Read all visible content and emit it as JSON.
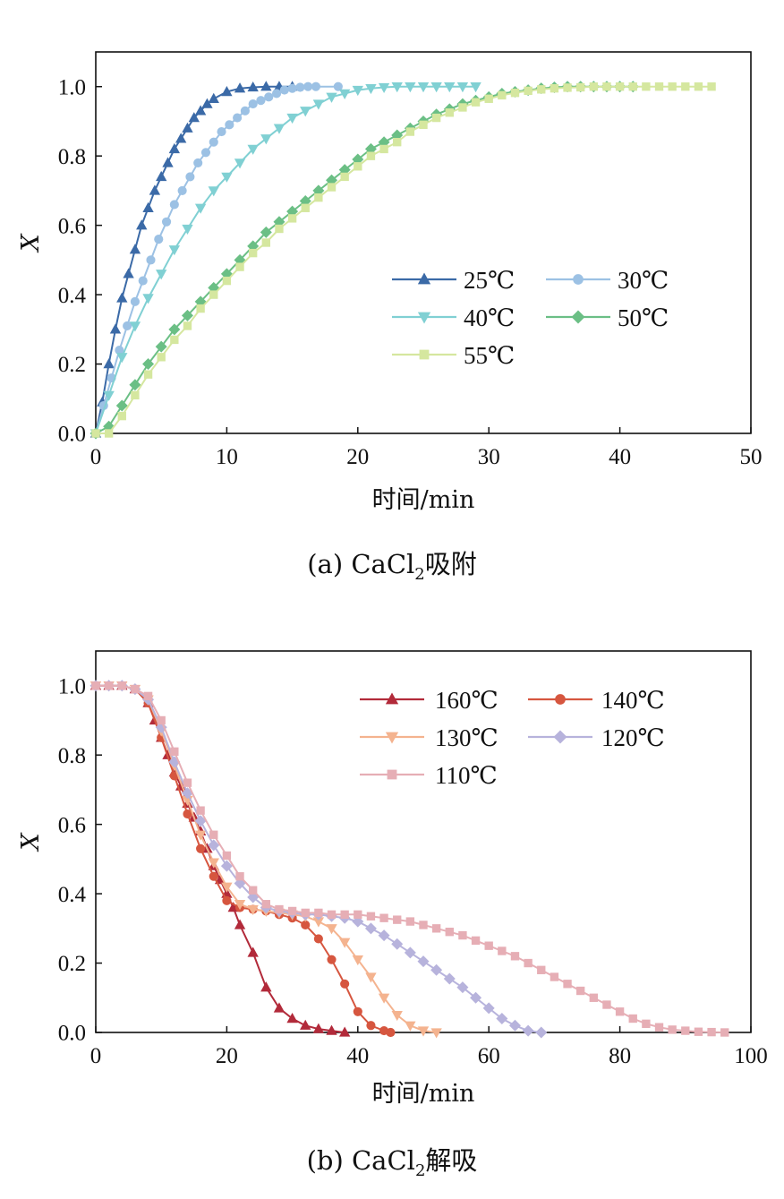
{
  "chart_data": [
    {
      "type": "line",
      "caption": {
        "prefix": "(a) CaCl",
        "sub": "2",
        "suffix": "吸附"
      },
      "xlabel": "时间/min",
      "ylabel": "X",
      "xlim": [
        0,
        50
      ],
      "ylim": [
        0,
        1.1
      ],
      "xticks": [
        0,
        10,
        20,
        30,
        40,
        50
      ],
      "yticks": [
        0.0,
        0.2,
        0.4,
        0.6,
        0.8,
        1.0
      ],
      "xtick_labels": [
        "0",
        "10",
        "20",
        "30",
        "40",
        "50"
      ],
      "ytick_labels": [
        "0.0",
        "0.2",
        "0.4",
        "0.6",
        "0.8",
        "1.0"
      ],
      "legend_position": "center-right",
      "series": [
        {
          "name": "25℃",
          "marker": "triangle-up",
          "color": "#3b6aa7",
          "x": [
            0,
            0.5,
            1,
            1.5,
            2,
            2.5,
            3,
            3.5,
            4,
            4.5,
            5,
            5.5,
            6,
            6.5,
            7,
            7.5,
            8,
            8.5,
            9,
            10,
            11,
            12,
            13,
            14,
            15
          ],
          "y": [
            0.0,
            0.09,
            0.2,
            0.3,
            0.39,
            0.46,
            0.53,
            0.6,
            0.65,
            0.7,
            0.74,
            0.78,
            0.82,
            0.85,
            0.88,
            0.91,
            0.93,
            0.95,
            0.965,
            0.985,
            0.995,
            0.998,
            1.0,
            1.0,
            1.0
          ]
        },
        {
          "name": "30℃",
          "marker": "circle",
          "color": "#9cc1e4",
          "x": [
            0,
            0.6,
            1.2,
            1.8,
            2.4,
            3,
            3.6,
            4.2,
            4.8,
            5.4,
            6,
            6.6,
            7.2,
            7.8,
            8.4,
            9,
            9.6,
            10.2,
            10.8,
            11.4,
            12,
            12.6,
            13.2,
            13.8,
            14.4,
            15,
            15.6,
            16.2,
            16.8,
            18.5
          ],
          "y": [
            0.0,
            0.08,
            0.16,
            0.24,
            0.31,
            0.38,
            0.44,
            0.5,
            0.56,
            0.61,
            0.66,
            0.7,
            0.74,
            0.78,
            0.81,
            0.84,
            0.87,
            0.89,
            0.91,
            0.93,
            0.95,
            0.96,
            0.97,
            0.98,
            0.99,
            0.995,
            0.998,
            1.0,
            1.0,
            1.0
          ]
        },
        {
          "name": "40℃",
          "marker": "triangle-down",
          "color": "#80d0d3",
          "x": [
            0,
            1,
            2,
            3,
            4,
            5,
            6,
            7,
            8,
            9,
            10,
            11,
            12,
            13,
            14,
            15,
            16,
            17,
            18,
            19,
            20,
            21,
            22,
            23,
            24,
            25,
            26,
            27,
            28,
            29
          ],
          "y": [
            0.0,
            0.11,
            0.22,
            0.31,
            0.39,
            0.46,
            0.53,
            0.59,
            0.65,
            0.7,
            0.74,
            0.78,
            0.82,
            0.85,
            0.88,
            0.91,
            0.93,
            0.95,
            0.97,
            0.98,
            0.99,
            0.995,
            0.998,
            1.0,
            1.0,
            1.0,
            1.0,
            1.0,
            1.0,
            1.0
          ]
        },
        {
          "name": "50℃",
          "marker": "diamond",
          "color": "#6bbf85",
          "x": [
            0,
            1,
            2,
            3,
            4,
            5,
            6,
            7,
            8,
            9,
            10,
            11,
            12,
            13,
            14,
            15,
            16,
            17,
            18,
            19,
            20,
            21,
            22,
            23,
            24,
            25,
            26,
            27,
            28,
            29,
            30,
            31,
            32,
            33,
            34,
            35,
            36,
            37,
            38,
            39,
            40,
            41
          ],
          "y": [
            0.0,
            0.02,
            0.08,
            0.14,
            0.2,
            0.25,
            0.3,
            0.34,
            0.38,
            0.42,
            0.46,
            0.5,
            0.54,
            0.58,
            0.61,
            0.64,
            0.67,
            0.7,
            0.73,
            0.76,
            0.79,
            0.82,
            0.84,
            0.86,
            0.88,
            0.9,
            0.92,
            0.935,
            0.95,
            0.96,
            0.97,
            0.98,
            0.985,
            0.99,
            0.995,
            0.998,
            1.0,
            1.0,
            1.0,
            1.0,
            1.0,
            1.0
          ]
        },
        {
          "name": "55℃",
          "marker": "square",
          "color": "#d5e79f",
          "x": [
            0,
            1,
            2,
            3,
            4,
            5,
            6,
            7,
            8,
            9,
            10,
            11,
            12,
            13,
            14,
            15,
            16,
            17,
            18,
            19,
            20,
            21,
            22,
            23,
            24,
            25,
            26,
            27,
            28,
            29,
            30,
            31,
            32,
            33,
            34,
            35,
            36,
            37,
            38,
            39,
            40,
            41,
            42,
            43,
            44,
            45,
            46,
            47
          ],
          "y": [
            0.0,
            0.0,
            0.05,
            0.11,
            0.17,
            0.22,
            0.27,
            0.31,
            0.36,
            0.4,
            0.44,
            0.48,
            0.52,
            0.55,
            0.59,
            0.62,
            0.65,
            0.68,
            0.71,
            0.74,
            0.77,
            0.8,
            0.82,
            0.84,
            0.87,
            0.89,
            0.91,
            0.925,
            0.94,
            0.955,
            0.965,
            0.975,
            0.982,
            0.988,
            0.992,
            0.995,
            0.997,
            0.998,
            1.0,
            1.0,
            1.0,
            1.0,
            1.0,
            1.0,
            1.0,
            1.0,
            1.0,
            1.0
          ]
        }
      ]
    },
    {
      "type": "line",
      "caption": {
        "prefix": "(b) CaCl",
        "sub": "2",
        "suffix": "解吸"
      },
      "xlabel": "时间/min",
      "ylabel": "X",
      "xlim": [
        0,
        100
      ],
      "ylim": [
        0,
        1.1
      ],
      "xticks": [
        0,
        20,
        40,
        60,
        80,
        100
      ],
      "yticks": [
        0.0,
        0.2,
        0.4,
        0.6,
        0.8,
        1.0
      ],
      "xtick_labels": [
        "0",
        "20",
        "40",
        "60",
        "80",
        "100"
      ],
      "ytick_labels": [
        "0.0",
        "0.2",
        "0.4",
        "0.6",
        "0.8",
        "1.0"
      ],
      "legend_position": "top-right",
      "series": [
        {
          "name": "160℃",
          "marker": "triangle-up",
          "color": "#b22a3a",
          "x": [
            0,
            2,
            4,
            6,
            8,
            9,
            10,
            11,
            12,
            13,
            14,
            15,
            16,
            17,
            18,
            19,
            20,
            21,
            22,
            24,
            26,
            28,
            30,
            32,
            34,
            36,
            38
          ],
          "y": [
            1.0,
            1.0,
            1.0,
            0.99,
            0.95,
            0.9,
            0.85,
            0.8,
            0.75,
            0.71,
            0.66,
            0.62,
            0.58,
            0.53,
            0.48,
            0.44,
            0.4,
            0.36,
            0.31,
            0.23,
            0.13,
            0.07,
            0.04,
            0.02,
            0.01,
            0.005,
            0.0
          ]
        },
        {
          "name": "140℃",
          "marker": "circle",
          "color": "#d6563f",
          "x": [
            0,
            2,
            4,
            6,
            8,
            10,
            12,
            14,
            16,
            18,
            20,
            22,
            24,
            26,
            28,
            30,
            32,
            34,
            36,
            38,
            40,
            42,
            44,
            45
          ],
          "y": [
            1.0,
            1.0,
            1.0,
            0.99,
            0.95,
            0.85,
            0.74,
            0.63,
            0.53,
            0.45,
            0.38,
            0.36,
            0.355,
            0.35,
            0.34,
            0.33,
            0.31,
            0.27,
            0.21,
            0.14,
            0.06,
            0.02,
            0.005,
            0.0
          ]
        },
        {
          "name": "130℃",
          "marker": "triangle-down",
          "color": "#f4b38f",
          "x": [
            0,
            2,
            4,
            6,
            8,
            10,
            12,
            14,
            16,
            18,
            20,
            22,
            24,
            26,
            28,
            30,
            32,
            34,
            36,
            38,
            40,
            42,
            44,
            46,
            48,
            50,
            52
          ],
          "y": [
            1.0,
            1.0,
            1.0,
            0.99,
            0.96,
            0.87,
            0.77,
            0.67,
            0.57,
            0.49,
            0.42,
            0.37,
            0.355,
            0.35,
            0.345,
            0.34,
            0.335,
            0.32,
            0.3,
            0.26,
            0.21,
            0.16,
            0.1,
            0.05,
            0.02,
            0.005,
            0.0
          ]
        },
        {
          "name": "120℃",
          "marker": "diamond",
          "color": "#b7b3dc",
          "x": [
            0,
            2,
            4,
            6,
            8,
            10,
            12,
            14,
            16,
            18,
            20,
            22,
            24,
            26,
            28,
            30,
            32,
            34,
            36,
            38,
            40,
            42,
            44,
            46,
            48,
            50,
            52,
            54,
            56,
            58,
            60,
            62,
            64,
            66,
            68
          ],
          "y": [
            1.0,
            1.0,
            1.0,
            0.99,
            0.96,
            0.88,
            0.78,
            0.69,
            0.61,
            0.54,
            0.48,
            0.43,
            0.39,
            0.36,
            0.35,
            0.345,
            0.34,
            0.34,
            0.335,
            0.33,
            0.32,
            0.3,
            0.28,
            0.255,
            0.23,
            0.205,
            0.18,
            0.155,
            0.13,
            0.1,
            0.07,
            0.04,
            0.02,
            0.005,
            0.0
          ]
        },
        {
          "name": "110℃",
          "marker": "square",
          "color": "#e6aeb5",
          "x": [
            0,
            2,
            4,
            6,
            8,
            10,
            12,
            14,
            16,
            18,
            20,
            22,
            24,
            26,
            28,
            30,
            32,
            34,
            36,
            38,
            40,
            42,
            44,
            46,
            48,
            50,
            52,
            54,
            56,
            58,
            60,
            62,
            64,
            66,
            68,
            70,
            72,
            74,
            76,
            78,
            80,
            82,
            84,
            86,
            88,
            90,
            92,
            94,
            96
          ],
          "y": [
            1.0,
            1.0,
            1.0,
            0.99,
            0.97,
            0.9,
            0.81,
            0.72,
            0.64,
            0.57,
            0.51,
            0.45,
            0.41,
            0.37,
            0.355,
            0.35,
            0.345,
            0.345,
            0.34,
            0.34,
            0.34,
            0.335,
            0.33,
            0.325,
            0.32,
            0.31,
            0.3,
            0.29,
            0.28,
            0.265,
            0.25,
            0.235,
            0.22,
            0.2,
            0.18,
            0.16,
            0.14,
            0.12,
            0.1,
            0.08,
            0.06,
            0.04,
            0.025,
            0.015,
            0.008,
            0.005,
            0.002,
            0.001,
            0.0
          ]
        }
      ]
    }
  ]
}
